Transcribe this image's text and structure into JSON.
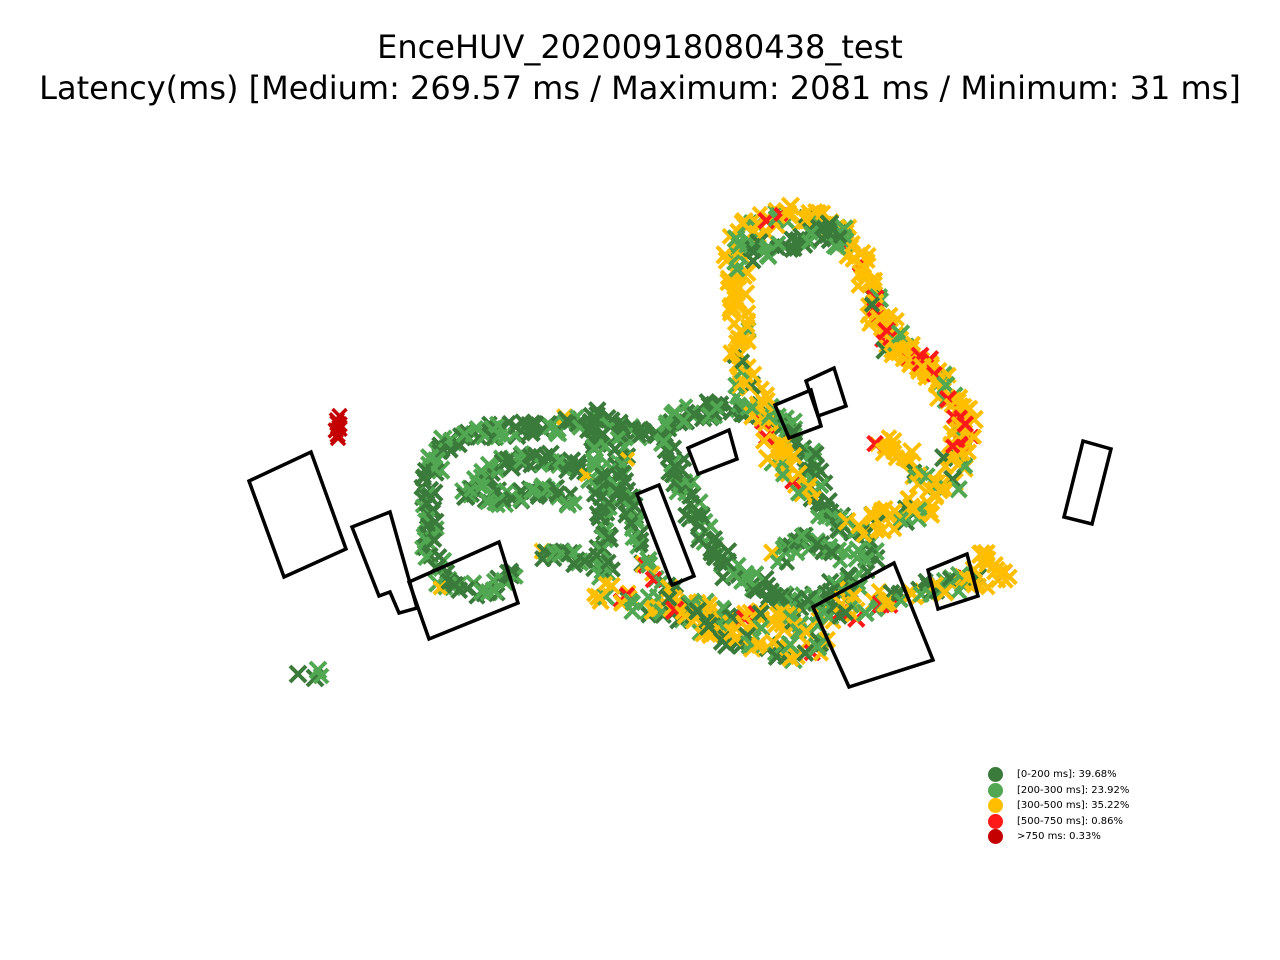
{
  "title": "EnceHUV_20200918080438_test",
  "subtitle": "Latency(ms) [Medium: 269.57 ms / Maximum: 2081 ms / Minimum: 31 ms]",
  "colors": {
    "band_0_200": "#3a7a3a",
    "band_200_300": "#52a852",
    "band_300_500": "#ffbf00",
    "band_500_750": "#ff1a1a",
    "band_over_750": "#c40000",
    "building_outline": "#000000"
  },
  "legend": {
    "placement": "bottom-right",
    "items": [
      {
        "label": "[0-200 ms]: 39.68%",
        "color": "#3a7a3a"
      },
      {
        "label": "[200-300 ms]: 23.92%",
        "color": "#52a852"
      },
      {
        "label": "[300-500 ms]: 35.22%",
        "color": "#ffbf00"
      },
      {
        "label": "[500-750 ms]: 0.86%",
        "color": "#ff1a1a"
      },
      {
        "label": ">750 ms: 0.33%",
        "color": "#c40000"
      }
    ]
  },
  "marker_symbol": "x-mark"
}
